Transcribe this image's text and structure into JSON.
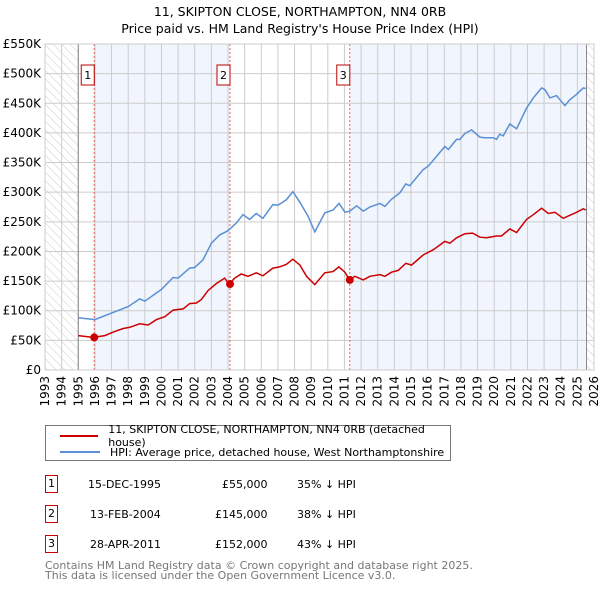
{
  "chart_data": {
    "type": "line",
    "title": "11, SKIPTON CLOSE, NORTHAMPTON, NN4 0RB",
    "subtitle": "Price paid vs. HM Land Registry's House Price Index (HPI)",
    "xlim": [
      1993,
      2026
    ],
    "ylim": [
      0,
      550000
    ],
    "x_ticks": [
      "1993",
      "1994",
      "1995",
      "1996",
      "1997",
      "1998",
      "1999",
      "2000",
      "2001",
      "2002",
      "2003",
      "2004",
      "2005",
      "2006",
      "2007",
      "2008",
      "2009",
      "2010",
      "2011",
      "2012",
      "2013",
      "2014",
      "2015",
      "2016",
      "2017",
      "2018",
      "2019",
      "2020",
      "2021",
      "2022",
      "2023",
      "2024",
      "2025",
      "2026"
    ],
    "y_ticks": [
      {
        "v": 0,
        "label": "£0"
      },
      {
        "v": 50000,
        "label": "£50K"
      },
      {
        "v": 100000,
        "label": "£100K"
      },
      {
        "v": 150000,
        "label": "£150K"
      },
      {
        "v": 200000,
        "label": "£200K"
      },
      {
        "v": 250000,
        "label": "£250K"
      },
      {
        "v": 300000,
        "label": "£300K"
      },
      {
        "v": 350000,
        "label": "£350K"
      },
      {
        "v": 400000,
        "label": "£400K"
      },
      {
        "v": 450000,
        "label": "£450K"
      },
      {
        "v": 500000,
        "label": "£500K"
      },
      {
        "v": 550000,
        "label": "£550K"
      }
    ],
    "data_range": [
      1995.0,
      2025.55
    ],
    "shaded_ranges": [
      [
        1995.96,
        2004.12
      ],
      [
        2011.32,
        2025.55
      ]
    ],
    "grid": true,
    "series": [
      {
        "name": "11, SKIPTON CLOSE, NORTHAMPTON, NN4 0RB (detached house)",
        "color": "#cc0000",
        "x": [
          1995.0,
          1995.9,
          1996.6,
          1997.1,
          1997.7,
          1998.1,
          1998.7,
          1999.2,
          1999.7,
          2000.2,
          2000.7,
          2001.3,
          2001.7,
          2002.1,
          2002.4,
          2002.8,
          2003.3,
          2003.8,
          2004.06,
          2004.4,
          2004.8,
          2005.2,
          2005.7,
          2006.1,
          2006.7,
          2007.1,
          2007.5,
          2007.9,
          2008.32,
          2008.72,
          2009.22,
          2009.82,
          2010.32,
          2010.66,
          2011.03,
          2011.29,
          2011.63,
          2012.13,
          2012.53,
          2013.13,
          2013.43,
          2013.83,
          2014.23,
          2014.69,
          2015.03,
          2015.73,
          2016.34,
          2017.04,
          2017.34,
          2017.74,
          2018.24,
          2018.7,
          2019.14,
          2019.54,
          2020.14,
          2020.44,
          2020.94,
          2021.35,
          2021.95,
          2022.35,
          2022.85,
          2023.25,
          2023.65,
          2024.15,
          2024.95,
          2025.35,
          2025.51
        ],
        "y": [
          58000,
          55000,
          58000,
          64000,
          70000,
          72000,
          78000,
          76000,
          85000,
          90000,
          101000,
          103000,
          112000,
          113000,
          119000,
          134000,
          146000,
          155000,
          145000,
          155000,
          162000,
          158000,
          164000,
          159000,
          172000,
          174000,
          178000,
          187000,
          177000,
          158000,
          144000,
          164000,
          166000,
          174000,
          165000,
          152000,
          158000,
          152000,
          158000,
          161000,
          158000,
          165000,
          168000,
          180000,
          177000,
          194000,
          203000,
          217000,
          214000,
          223000,
          230000,
          231000,
          224000,
          223000,
          226000,
          226000,
          238000,
          232000,
          254000,
          262000,
          273000,
          264000,
          266000,
          256000,
          266000,
          272000,
          270000
        ]
      },
      {
        "name": "HPI: Average price, detached house, West Northamptonshire",
        "color": "#5b8fd6",
        "x": [
          1995.0,
          1996.0,
          1997.0,
          1998.0,
          1998.7,
          1999.0,
          2000.0,
          2000.7,
          2001.0,
          2001.7,
          2002.0,
          2002.5,
          2003.0,
          2003.5,
          2004.0,
          2004.5,
          2004.9,
          2005.3,
          2005.7,
          2006.1,
          2006.7,
          2007.0,
          2007.5,
          2007.9,
          2008.32,
          2008.82,
          2009.22,
          2009.82,
          2010.32,
          2010.68,
          2011.03,
          2011.33,
          2011.73,
          2012.13,
          2012.53,
          2013.13,
          2013.43,
          2013.83,
          2014.33,
          2014.69,
          2014.93,
          2015.73,
          2016.04,
          2017.04,
          2017.24,
          2017.74,
          2017.94,
          2018.24,
          2018.64,
          2019.14,
          2019.44,
          2019.94,
          2020.14,
          2020.34,
          2020.54,
          2020.94,
          2021.35,
          2021.95,
          2022.35,
          2022.85,
          2023.05,
          2023.35,
          2023.75,
          2023.95,
          2024.25,
          2024.55,
          2024.95,
          2025.35,
          2025.51
        ],
        "y": [
          88000,
          85000,
          96000,
          107000,
          120000,
          116000,
          136000,
          156000,
          155000,
          172000,
          173000,
          186000,
          214000,
          228000,
          235000,
          248000,
          262000,
          254000,
          264000,
          256000,
          279000,
          278000,
          287000,
          301000,
          283000,
          259000,
          233000,
          265000,
          270000,
          281000,
          266000,
          268000,
          277000,
          268000,
          275000,
          281000,
          276000,
          288000,
          299000,
          314000,
          311000,
          338000,
          344000,
          377000,
          372000,
          389000,
          389000,
          399000,
          405000,
          393000,
          392000,
          392000,
          389000,
          398000,
          395000,
          415000,
          407000,
          442000,
          459000,
          476000,
          473000,
          459000,
          463000,
          456000,
          446000,
          456000,
          465000,
          476000,
          475000
        ]
      }
    ],
    "sales": [
      {
        "id": "1",
        "x": 1995.96,
        "y": 55000
      },
      {
        "id": "2",
        "x": 2004.12,
        "y": 145000
      },
      {
        "id": "3",
        "x": 2011.32,
        "y": 152000
      }
    ]
  },
  "legend": {
    "property": "11, SKIPTON CLOSE, NORTHAMPTON, NN4 0RB (detached house)",
    "hpi": "HPI: Average price, detached house, West Northamptonshire"
  },
  "transactions": [
    {
      "id": "1",
      "date": "15-DEC-1995",
      "price": "£55,000",
      "delta": "35% ↓ HPI"
    },
    {
      "id": "2",
      "date": "13-FEB-2004",
      "price": "£145,000",
      "delta": "38% ↓ HPI"
    },
    {
      "id": "3",
      "date": "28-APR-2011",
      "price": "£152,000",
      "delta": "43% ↓ HPI"
    }
  ],
  "footer": {
    "line1": "Contains HM Land Registry data © Crown copyright and database right 2025.",
    "line2": "This data is licensed under the Open Government Licence v3.0."
  }
}
